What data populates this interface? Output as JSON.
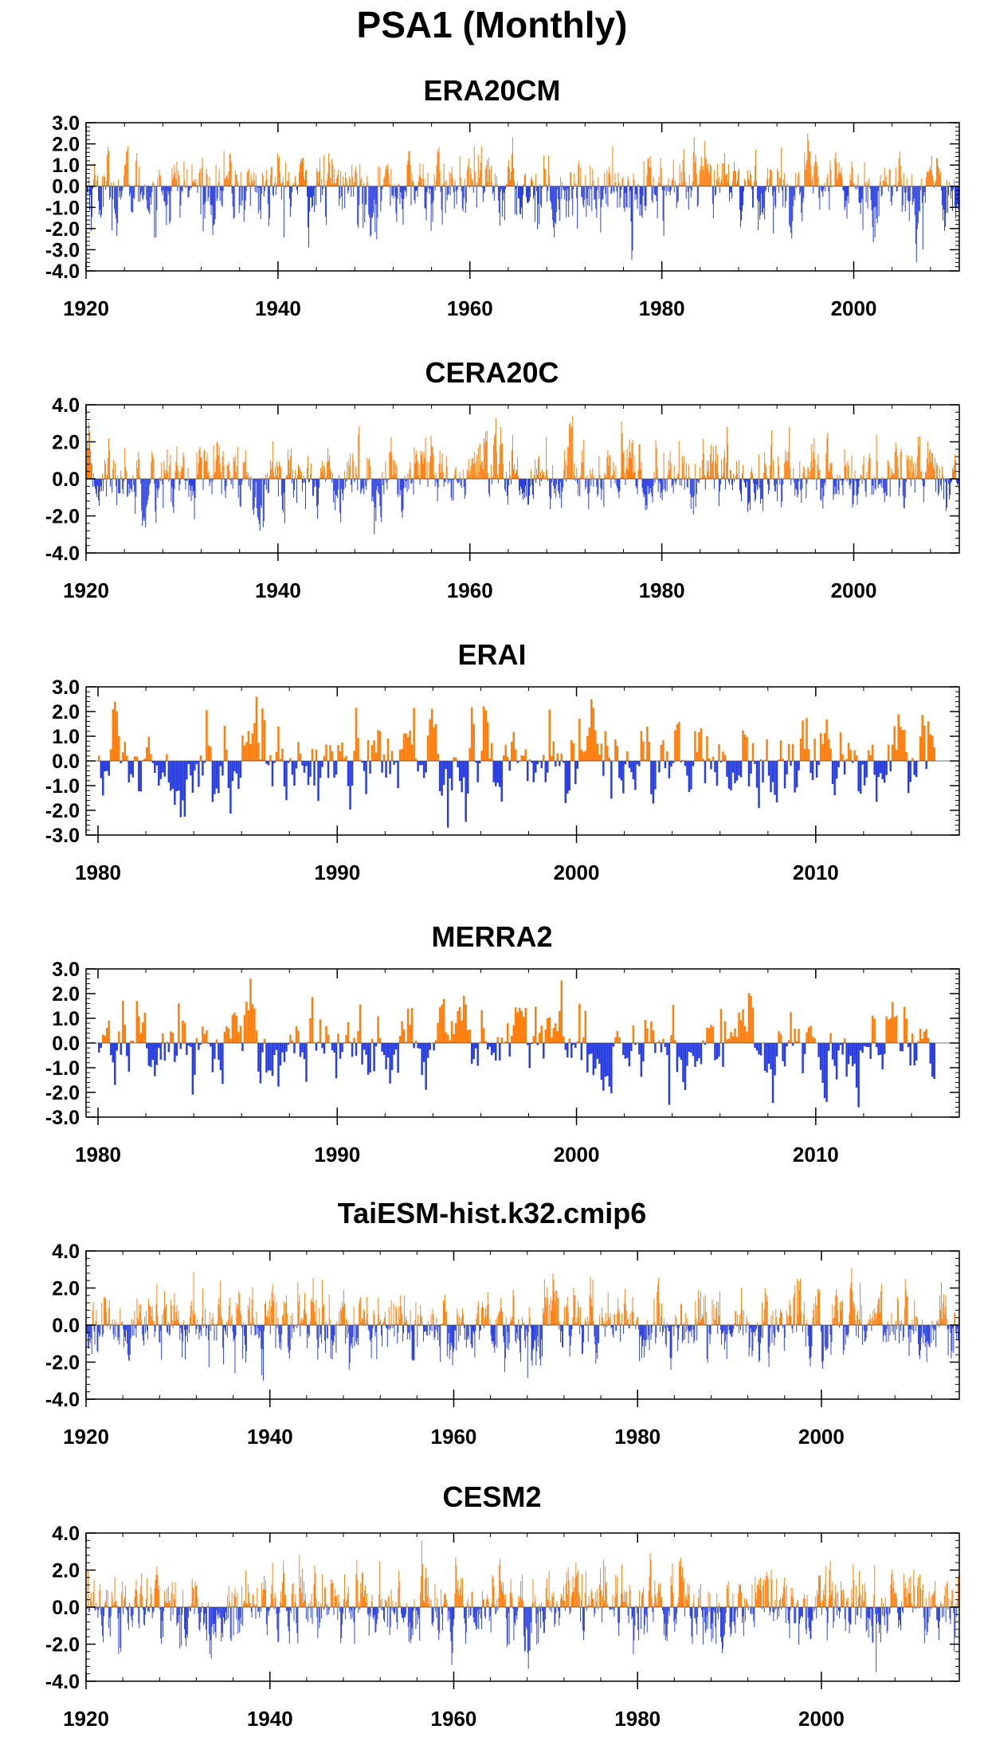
{
  "title": "PSA1 (Monthly)",
  "colors": {
    "positive": "#ff7f0e",
    "negative": "#2a3fe0",
    "frame": "#000000"
  },
  "chart_data": [
    {
      "type": "bar",
      "title": "ERA20CM",
      "x_range": [
        1920,
        2011
      ],
      "ylim": [
        -4.0,
        3.0
      ],
      "y_ticks": [
        "3.0",
        "2.0",
        "1.0",
        "0.0",
        "-1.0",
        "-2.0",
        "-3.0",
        "-4.0"
      ],
      "x_ticks": [
        "1920",
        "1940",
        "1960",
        "1980",
        "2000"
      ],
      "extremes": {
        "max": 2.5,
        "min": -3.6
      },
      "series": [
        {
          "values": "monthly PSA1 index, Jan 1920 - Dec 2010"
        }
      ]
    },
    {
      "type": "bar",
      "title": "CERA20C",
      "x_range": [
        1920,
        2011
      ],
      "ylim": [
        -4.0,
        4.0
      ],
      "y_ticks": [
        "4.0",
        "2.0",
        "0.0",
        "-2.0",
        "-4.0"
      ],
      "x_ticks": [
        "1920",
        "1940",
        "1960",
        "1980",
        "2000"
      ],
      "extremes": {
        "max": 3.4,
        "min": -3.0
      },
      "series": [
        {
          "values": "monthly PSA1 index, Jan 1920 - Dec 2010"
        }
      ]
    },
    {
      "type": "bar",
      "title": "ERAI",
      "x_range": [
        1979.5,
        2016
      ],
      "ylim": [
        -3.0,
        3.0
      ],
      "y_ticks": [
        "3.0",
        "2.0",
        "1.0",
        "0.0",
        "-1.0",
        "-2.0",
        "-3.0"
      ],
      "x_ticks": [
        "1980",
        "1990",
        "2000",
        "2010"
      ],
      "extremes": {
        "max": 2.6,
        "min": -2.7
      },
      "series": [
        {
          "values": "monthly PSA1 index, Jan 1980 - Dec 2014"
        }
      ]
    },
    {
      "type": "bar",
      "title": "MERRA2",
      "x_range": [
        1979.5,
        2016
      ],
      "ylim": [
        -3.0,
        3.0
      ],
      "y_ticks": [
        "3.0",
        "2.0",
        "1.0",
        "0.0",
        "-1.0",
        "-2.0",
        "-3.0"
      ],
      "x_ticks": [
        "1980",
        "1990",
        "2000",
        "2010"
      ],
      "extremes": {
        "max": 2.6,
        "min": -2.6
      },
      "series": [
        {
          "values": "monthly PSA1 index, Jan 1980 - Dec 2014"
        }
      ]
    },
    {
      "type": "bar",
      "title": "TaiESM-hist.k32.cmip6",
      "x_range": [
        1920,
        2015
      ],
      "ylim": [
        -4.0,
        4.0
      ],
      "y_ticks": [
        "4.0",
        "2.0",
        "0.0",
        "-2.0",
        "-4.0"
      ],
      "x_ticks": [
        "1920",
        "1940",
        "1960",
        "1980",
        "2000"
      ],
      "extremes": {
        "max": 3.1,
        "min": -3.0
      },
      "series": [
        {
          "values": "monthly PSA1 index, Jan 1920 - Dec 2014"
        }
      ]
    },
    {
      "type": "bar",
      "title": "CESM2",
      "x_range": [
        1920,
        2015
      ],
      "ylim": [
        -4.0,
        4.0
      ],
      "y_ticks": [
        "4.0",
        "2.0",
        "0.0",
        "-2.0",
        "-4.0"
      ],
      "x_ticks": [
        "1920",
        "1940",
        "1960",
        "1980",
        "2000"
      ],
      "extremes": {
        "max": 3.6,
        "min": -3.5
      },
      "series": [
        {
          "values": "monthly PSA1 index, Jan 1920 - Dec 2014"
        }
      ]
    }
  ]
}
